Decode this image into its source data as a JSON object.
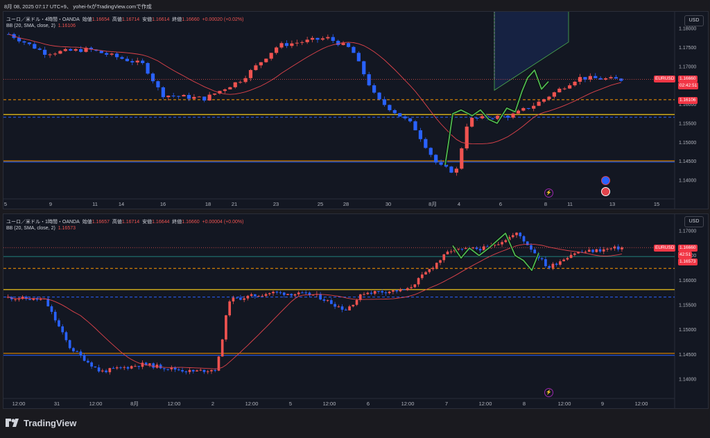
{
  "header": {
    "text": "8月 08, 2025 07:17 UTC+9、 yohei-fxがTradingView.comで作成"
  },
  "chart1": {
    "legend_title": "ユーロ／米ドル・4時間・OANDA",
    "o_label": "始値",
    "o": "1.16654",
    "h_label": "高値",
    "h": "1.16714",
    "l_label": "安値",
    "l": "1.16614",
    "c_label": "終値",
    "c": "1.16660",
    "chg": "+0.00020 (+0.02%)",
    "bb_label": "BB (20, SMA, close, 2)",
    "bb_value": "1.16106",
    "currency": "USD",
    "symbol_tag": "EURUSD",
    "price_tag": "1.16660",
    "timer_tag": "02:42:51",
    "bb_tag": "1.16106",
    "y_ticks": [
      "1.18000",
      "1.17500",
      "1.17000",
      "1.16500",
      "1.16000",
      "1.15500",
      "1.15000",
      "1.14500",
      "1.14000"
    ],
    "x_ticks": [
      "5",
      "9",
      "11",
      "14",
      "16",
      "18",
      "21",
      "23",
      "25",
      "28",
      "30",
      "8月",
      "4",
      "6",
      "8",
      "11",
      "13",
      "15"
    ]
  },
  "chart2": {
    "legend_title": "ユーロ／米ドル・1時間・OANDA",
    "o_label": "始値",
    "o": "1.16657",
    "h_label": "高値",
    "h": "1.16714",
    "l_label": "安値",
    "l": "1.16644",
    "c_label": "終値",
    "c": "1.16660",
    "chg": "+0.00004 (+0.00%)",
    "bb_label": "BB (20, SMA, close, 2)",
    "bb_value": "1.16573",
    "currency": "USD",
    "symbol_tag": "EURUSD",
    "price_tag": "1.16660",
    "timer_tag": "42:51",
    "bb_tag": "1.16573",
    "y_ticks": [
      "1.17000",
      "1.16500",
      "1.16000",
      "1.15500",
      "1.15000",
      "1.14500",
      "1.14000"
    ],
    "x_ticks": [
      "12:00",
      "31",
      "12:00",
      "8月",
      "12:00",
      "2",
      "12:00",
      "5",
      "12:00",
      "6",
      "12:00",
      "7",
      "12:00",
      "8",
      "12:00",
      "9",
      "12:00"
    ]
  },
  "footer": {
    "brand": "TradingView"
  },
  "colors": {
    "up": "#ef5350",
    "down": "#2962ff",
    "bb": "#e0434b",
    "green_path": "#4caf50",
    "support": "#f0c419",
    "orange": "#ff9800",
    "teal": "#26a69a"
  }
}
